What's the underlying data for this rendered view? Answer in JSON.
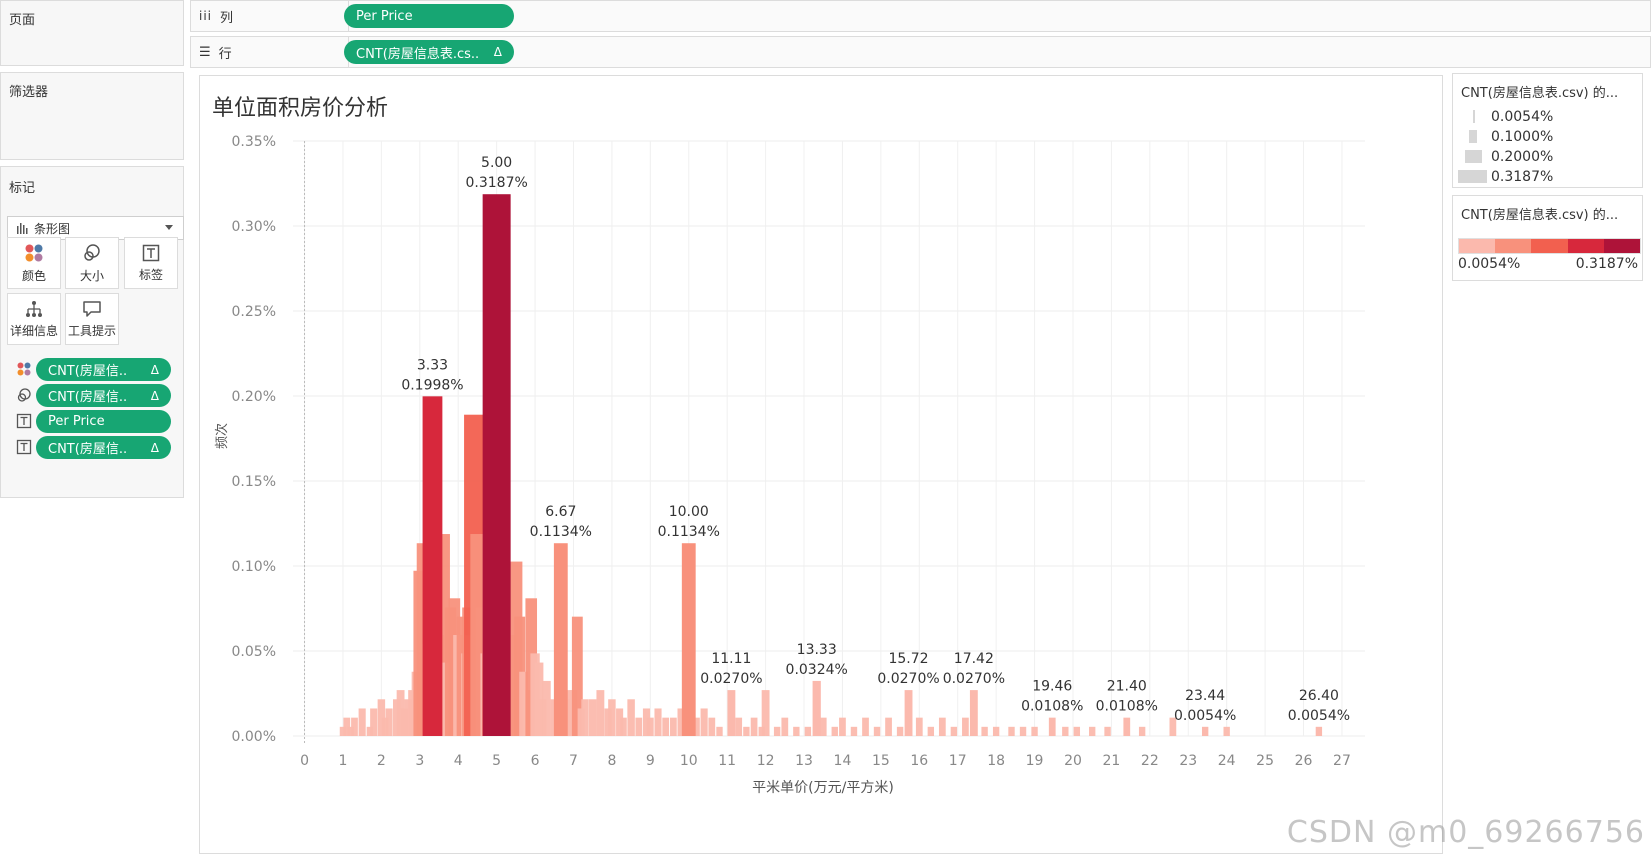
{
  "left_panel": {
    "pages_title": "页面",
    "filters_title": "筛选器",
    "marks_title": "标记",
    "mark_type": "条形图",
    "mark_buttons": [
      "颜色",
      "大小",
      "标签",
      "详细信息",
      "工具提示"
    ],
    "mark_fields": [
      {
        "label": "CNT(房屋信..",
        "delta": "Δ",
        "icon": "color-icon"
      },
      {
        "label": "CNT(房屋信..",
        "delta": "Δ",
        "icon": "size-icon"
      },
      {
        "label": "Per Price",
        "delta": "",
        "icon": "label-icon"
      },
      {
        "label": "CNT(房屋信..",
        "delta": "Δ",
        "icon": "label-icon"
      }
    ]
  },
  "shelves": {
    "columns_label": "列",
    "columns_pill": "Per Price",
    "rows_label": "行",
    "rows_pill": "CNT(房屋信息表.cs..",
    "rows_delta": "Δ"
  },
  "legends": {
    "size_title": "CNT(房屋信息表.csv) 的...",
    "size_items": [
      "0.0054%",
      "0.1000%",
      "0.2000%",
      "0.3187%"
    ],
    "color_title": "CNT(房屋信息表.csv) 的...",
    "color_min": "0.0054%",
    "color_max": "0.3187%",
    "color_ramp": [
      "#fbb9ad",
      "#f8917c",
      "#f2604f",
      "#d7283c",
      "#ae1339"
    ]
  },
  "watermark": "CSDN @m0_69266756",
  "chart_data": {
    "type": "bar",
    "title": "单位面积房价分析",
    "xlabel": "平米单价(万元/平方米)",
    "ylabel": "频次",
    "xlim": [
      -0.3,
      27.6
    ],
    "ylim": [
      0,
      0.35
    ],
    "x_ticks": [
      "0",
      "1",
      "2",
      "3",
      "4",
      "5",
      "6",
      "7",
      "8",
      "9",
      "10",
      "11",
      "12",
      "13",
      "14",
      "15",
      "16",
      "17",
      "18",
      "19",
      "20",
      "21",
      "22",
      "23",
      "24",
      "25",
      "26",
      "27"
    ],
    "y_ticks": [
      "0.00%",
      "0.05%",
      "0.10%",
      "0.15%",
      "0.20%",
      "0.25%",
      "0.30%",
      "0.35%"
    ],
    "grid": true,
    "annotated_bars": [
      {
        "x": 3.33,
        "y": 0.1998,
        "label_x": "3.33",
        "label_y": "0.1998%"
      },
      {
        "x": 5.0,
        "y": 0.3187,
        "label_x": "5.00",
        "label_y": "0.3187%"
      },
      {
        "x": 6.67,
        "y": 0.1134,
        "label_x": "6.67",
        "label_y": "0.1134%"
      },
      {
        "x": 10.0,
        "y": 0.1134,
        "label_x": "10.00",
        "label_y": "0.1134%"
      },
      {
        "x": 11.11,
        "y": 0.027,
        "label_x": "11.11",
        "label_y": "0.0270%"
      },
      {
        "x": 13.33,
        "y": 0.0324,
        "label_x": "13.33",
        "label_y": "0.0324%"
      },
      {
        "x": 15.72,
        "y": 0.027,
        "label_x": "15.72",
        "label_y": "0.0270%"
      },
      {
        "x": 17.42,
        "y": 0.027,
        "label_x": "17.42",
        "label_y": "0.0270%"
      },
      {
        "x": 19.46,
        "y": 0.0108,
        "label_x": "19.46",
        "label_y": "0.0108%"
      },
      {
        "x": 21.4,
        "y": 0.0108,
        "label_x": "21.40",
        "label_y": "0.0108%"
      },
      {
        "x": 23.44,
        "y": 0.0054,
        "label_x": "23.44",
        "label_y": "0.0054%"
      },
      {
        "x": 26.4,
        "y": 0.0054,
        "label_x": "26.40",
        "label_y": "0.0054%"
      }
    ],
    "background_bars": [
      {
        "x": 1.0,
        "y": 0.0054
      },
      {
        "x": 1.1,
        "y": 0.0108
      },
      {
        "x": 1.2,
        "y": 0.0054
      },
      {
        "x": 1.3,
        "y": 0.0108
      },
      {
        "x": 1.5,
        "y": 0.0162
      },
      {
        "x": 1.7,
        "y": 0.0054
      },
      {
        "x": 1.8,
        "y": 0.0162
      },
      {
        "x": 2.0,
        "y": 0.0216
      },
      {
        "x": 2.1,
        "y": 0.0108
      },
      {
        "x": 2.2,
        "y": 0.0162
      },
      {
        "x": 2.4,
        "y": 0.0216
      },
      {
        "x": 2.5,
        "y": 0.027
      },
      {
        "x": 2.6,
        "y": 0.0162
      },
      {
        "x": 2.7,
        "y": 0.0216
      },
      {
        "x": 2.8,
        "y": 0.027
      },
      {
        "x": 2.9,
        "y": 0.0378
      },
      {
        "x": 3.0,
        "y": 0.0972
      },
      {
        "x": 3.1,
        "y": 0.1134
      },
      {
        "x": 3.2,
        "y": 0.054
      },
      {
        "x": 3.25,
        "y": 0.09
      },
      {
        "x": 3.5,
        "y": 0.0594
      },
      {
        "x": 3.6,
        "y": 0.1188
      },
      {
        "x": 3.7,
        "y": 0.0432
      },
      {
        "x": 3.8,
        "y": 0.0756
      },
      {
        "x": 3.9,
        "y": 0.081
      },
      {
        "x": 4.0,
        "y": 0.0594
      },
      {
        "x": 4.1,
        "y": 0.0702
      },
      {
        "x": 4.2,
        "y": 0.0486
      },
      {
        "x": 4.25,
        "y": 0.0756
      },
      {
        "x": 4.3,
        "y": 0.0594
      },
      {
        "x": 4.4,
        "y": 0.189
      },
      {
        "x": 4.5,
        "y": 0.1188
      },
      {
        "x": 4.6,
        "y": 0.0756
      },
      {
        "x": 4.7,
        "y": 0.0486
      },
      {
        "x": 4.8,
        "y": 0.1134
      },
      {
        "x": 5.1,
        "y": 0.054
      },
      {
        "x": 5.2,
        "y": 0.0864
      },
      {
        "x": 5.4,
        "y": 0.0594
      },
      {
        "x": 5.5,
        "y": 0.1026
      },
      {
        "x": 5.6,
        "y": 0.0702
      },
      {
        "x": 5.7,
        "y": 0.0378
      },
      {
        "x": 5.8,
        "y": 0.027
      },
      {
        "x": 5.9,
        "y": 0.081
      },
      {
        "x": 6.0,
        "y": 0.0486
      },
      {
        "x": 6.1,
        "y": 0.0432
      },
      {
        "x": 6.2,
        "y": 0.0216
      },
      {
        "x": 6.3,
        "y": 0.0324
      },
      {
        "x": 6.5,
        "y": 0.0216
      },
      {
        "x": 6.8,
        "y": 0.0216
      },
      {
        "x": 6.9,
        "y": 0.027
      },
      {
        "x": 7.0,
        "y": 0.027
      },
      {
        "x": 7.1,
        "y": 0.0702
      },
      {
        "x": 7.2,
        "y": 0.0162
      },
      {
        "x": 7.3,
        "y": 0.0216
      },
      {
        "x": 7.5,
        "y": 0.0216
      },
      {
        "x": 7.7,
        "y": 0.027
      },
      {
        "x": 7.9,
        "y": 0.0162
      },
      {
        "x": 8.0,
        "y": 0.0216
      },
      {
        "x": 8.2,
        "y": 0.0162
      },
      {
        "x": 8.3,
        "y": 0.0108
      },
      {
        "x": 8.5,
        "y": 0.0216
      },
      {
        "x": 8.7,
        "y": 0.0108
      },
      {
        "x": 8.9,
        "y": 0.0162
      },
      {
        "x": 9.0,
        "y": 0.0108
      },
      {
        "x": 9.2,
        "y": 0.0162
      },
      {
        "x": 9.4,
        "y": 0.0108
      },
      {
        "x": 9.6,
        "y": 0.0108
      },
      {
        "x": 9.8,
        "y": 0.0162
      },
      {
        "x": 10.2,
        "y": 0.0108
      },
      {
        "x": 10.4,
        "y": 0.0162
      },
      {
        "x": 10.6,
        "y": 0.0108
      },
      {
        "x": 10.8,
        "y": 0.0054
      },
      {
        "x": 11.3,
        "y": 0.0108
      },
      {
        "x": 11.5,
        "y": 0.0054
      },
      {
        "x": 11.7,
        "y": 0.0108
      },
      {
        "x": 11.9,
        "y": 0.0054
      },
      {
        "x": 12.0,
        "y": 0.027
      },
      {
        "x": 12.3,
        "y": 0.0054
      },
      {
        "x": 12.5,
        "y": 0.0108
      },
      {
        "x": 12.8,
        "y": 0.0054
      },
      {
        "x": 13.1,
        "y": 0.0054
      },
      {
        "x": 13.5,
        "y": 0.0108
      },
      {
        "x": 13.8,
        "y": 0.0054
      },
      {
        "x": 14.0,
        "y": 0.0108
      },
      {
        "x": 14.3,
        "y": 0.0054
      },
      {
        "x": 14.6,
        "y": 0.0108
      },
      {
        "x": 14.9,
        "y": 0.0054
      },
      {
        "x": 15.2,
        "y": 0.0108
      },
      {
        "x": 15.5,
        "y": 0.0054
      },
      {
        "x": 16.0,
        "y": 0.0108
      },
      {
        "x": 16.3,
        "y": 0.0054
      },
      {
        "x": 16.6,
        "y": 0.0108
      },
      {
        "x": 16.9,
        "y": 0.0054
      },
      {
        "x": 17.2,
        "y": 0.0108
      },
      {
        "x": 17.7,
        "y": 0.0054
      },
      {
        "x": 18.0,
        "y": 0.0054
      },
      {
        "x": 18.4,
        "y": 0.0054
      },
      {
        "x": 18.7,
        "y": 0.0054
      },
      {
        "x": 19.0,
        "y": 0.0054
      },
      {
        "x": 19.8,
        "y": 0.0054
      },
      {
        "x": 20.1,
        "y": 0.0054
      },
      {
        "x": 20.5,
        "y": 0.0054
      },
      {
        "x": 20.9,
        "y": 0.0054
      },
      {
        "x": 21.8,
        "y": 0.0054
      },
      {
        "x": 22.6,
        "y": 0.0108
      },
      {
        "x": 24.0,
        "y": 0.0054
      }
    ]
  }
}
